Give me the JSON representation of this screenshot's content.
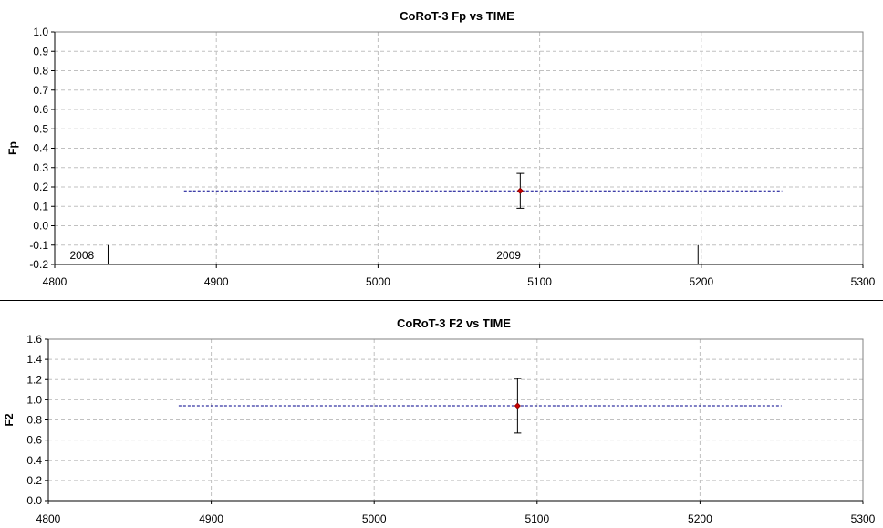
{
  "chart_data": [
    {
      "type": "scatter",
      "title": "CoRoT-3 Fp vs TIME",
      "xlabel": "",
      "ylabel": "Fp",
      "xlim": [
        4800,
        5300
      ],
      "ylim": [
        -0.2,
        1.0
      ],
      "xticks": [
        "4800",
        "4900",
        "5000",
        "5100",
        "5200",
        "5300"
      ],
      "yticks": [
        "-0.2",
        "-0.1",
        "0.0",
        "0.1",
        "0.2",
        "0.3",
        "0.4",
        "0.5",
        "0.6",
        "0.7",
        "0.8",
        "0.9",
        "1.0"
      ],
      "grid": true,
      "points": [
        {
          "x": 5088,
          "y": 0.18,
          "err_low": 0.09,
          "err_high": 0.27
        }
      ],
      "reference_line": {
        "y": 0.18,
        "x_start": 4880,
        "x_end": 5250
      },
      "year_markers": [
        {
          "x": 4833,
          "label": "2008"
        },
        {
          "x": 5198,
          "label": "2009"
        }
      ],
      "colors": {
        "point": "#cc0000",
        "reference_line": "#00008b",
        "grid": "#c0c0c0"
      }
    },
    {
      "type": "scatter",
      "title": "CoRoT-3 F2 vs TIME",
      "xlabel": "",
      "ylabel": "F2",
      "xlim": [
        4800,
        5300
      ],
      "ylim": [
        0.0,
        1.6
      ],
      "xticks": [
        "4800",
        "4900",
        "5000",
        "5100",
        "5200",
        "5300"
      ],
      "yticks": [
        "0.0",
        "0.2",
        "0.4",
        "0.6",
        "0.8",
        "1.0",
        "1.2",
        "1.4",
        "1.6"
      ],
      "grid": true,
      "points": [
        {
          "x": 5088,
          "y": 0.94,
          "err_low": 0.67,
          "err_high": 1.21
        }
      ],
      "reference_line": {
        "y": 0.94,
        "x_start": 4880,
        "x_end": 5250
      },
      "colors": {
        "point": "#cc0000",
        "reference_line": "#00008b",
        "grid": "#c0c0c0"
      }
    }
  ]
}
